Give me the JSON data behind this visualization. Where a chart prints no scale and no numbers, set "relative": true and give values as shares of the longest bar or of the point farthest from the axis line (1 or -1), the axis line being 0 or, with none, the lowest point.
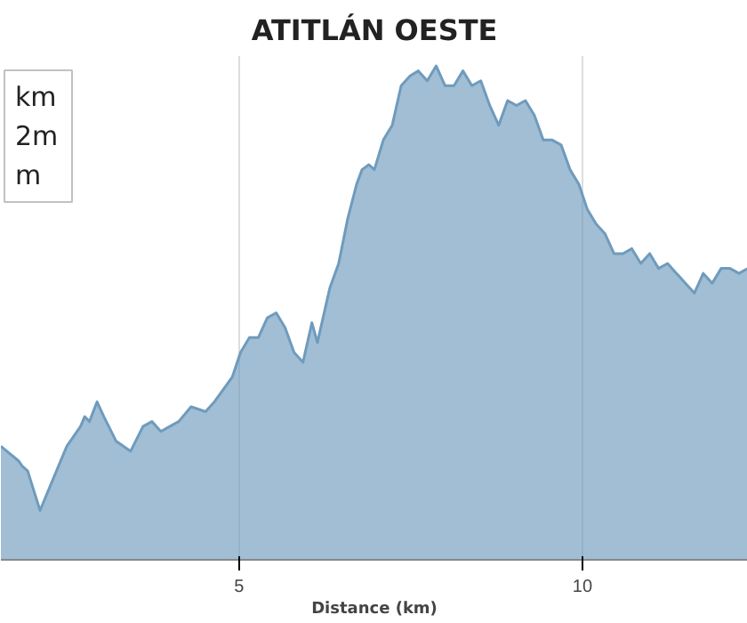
{
  "chart_data": {
    "type": "area",
    "title": "ATITLÁN OESTE",
    "xlabel": "Distance (km)",
    "relative": true,
    "xlim": [
      1.53,
      12.41
    ],
    "xticks": [
      5,
      10
    ],
    "grid": "x",
    "annotations": [
      "km",
      "2m",
      "m"
    ],
    "series": [
      {
        "color": "#6f9bbd",
        "x": [
          1.53,
          1.79,
          1.84,
          1.92,
          2.1,
          2.31,
          2.49,
          2.69,
          2.75,
          2.82,
          2.93,
          3.03,
          3.21,
          3.42,
          3.6,
          3.73,
          3.86,
          3.99,
          4.12,
          4.3,
          4.51,
          4.64,
          4.9,
          5.02,
          5.15,
          5.28,
          5.41,
          5.54,
          5.67,
          5.8,
          5.93,
          6.06,
          6.14,
          6.32,
          6.45,
          6.58,
          6.71,
          6.79,
          6.89,
          6.97,
          7.1,
          7.23,
          7.36,
          7.49,
          7.61,
          7.74,
          7.87,
          8.0,
          8.13,
          8.26,
          8.39,
          8.52,
          8.65,
          8.78,
          8.91,
          9.04,
          9.17,
          9.3,
          9.43,
          9.56,
          9.69,
          9.82,
          9.95,
          10.07,
          10.2,
          10.33,
          10.46,
          10.59,
          10.72,
          10.85,
          10.98,
          11.11,
          11.24,
          11.37,
          11.5,
          11.63,
          11.76,
          11.89,
          12.02,
          12.15,
          12.28,
          12.41
        ],
        "values": [
          0.23,
          0.2,
          0.19,
          0.18,
          0.1,
          0.17,
          0.23,
          0.27,
          0.29,
          0.28,
          0.32,
          0.29,
          0.24,
          0.22,
          0.27,
          0.28,
          0.26,
          0.27,
          0.28,
          0.31,
          0.3,
          0.32,
          0.37,
          0.42,
          0.45,
          0.45,
          0.49,
          0.5,
          0.47,
          0.42,
          0.4,
          0.48,
          0.44,
          0.55,
          0.6,
          0.69,
          0.76,
          0.79,
          0.8,
          0.79,
          0.85,
          0.88,
          0.96,
          0.98,
          0.99,
          0.97,
          1.0,
          0.96,
          0.96,
          0.99,
          0.96,
          0.97,
          0.92,
          0.88,
          0.93,
          0.92,
          0.93,
          0.9,
          0.85,
          0.85,
          0.84,
          0.79,
          0.76,
          0.71,
          0.68,
          0.66,
          0.62,
          0.62,
          0.63,
          0.6,
          0.62,
          0.59,
          0.6,
          0.58,
          0.56,
          0.54,
          0.58,
          0.56,
          0.59,
          0.59,
          0.58,
          0.59
        ]
      }
    ]
  }
}
